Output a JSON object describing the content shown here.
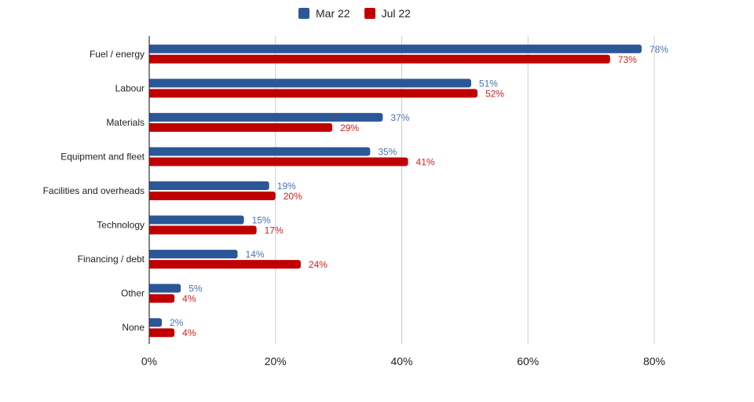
{
  "chart_data": {
    "type": "bar",
    "orientation": "horizontal",
    "title": "",
    "xlabel": "",
    "ylabel": "",
    "categories": [
      "Fuel / energy",
      "Labour",
      "Materials",
      "Equipment and fleet",
      "Facilities and overheads",
      "Technology",
      "Financing / debt",
      "Other",
      "None"
    ],
    "series": [
      {
        "name": "Mar 22",
        "color": "#2b5797",
        "values": [
          78,
          51,
          37,
          35,
          19,
          15,
          14,
          5,
          2
        ]
      },
      {
        "name": "Jul 22",
        "color": "#c00000",
        "values": [
          73,
          52,
          29,
          41,
          20,
          17,
          24,
          4,
          4
        ]
      }
    ],
    "data_labels": true,
    "xlim": [
      0,
      80
    ],
    "x_ticks": [
      "0%",
      "20%",
      "40%",
      "60%",
      "80%"
    ],
    "x_tick_values": [
      0,
      20,
      40,
      60,
      80
    ],
    "grid": "vertical",
    "legend": "top"
  }
}
